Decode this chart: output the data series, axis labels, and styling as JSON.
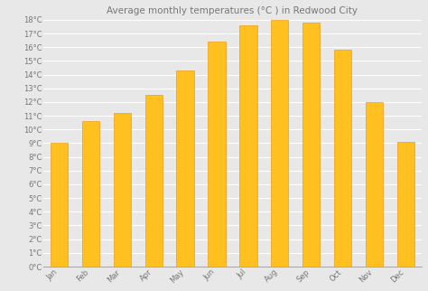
{
  "title": "Average monthly temperatures (°C ) in Redwood City",
  "months": [
    "Jan",
    "Feb",
    "Mar",
    "Apr",
    "May",
    "Jun",
    "Jul",
    "Aug",
    "Sep",
    "Oct",
    "Nov",
    "Dec"
  ],
  "values": [
    9.0,
    10.6,
    11.2,
    12.5,
    14.3,
    16.4,
    17.6,
    18.0,
    17.8,
    15.8,
    12.0,
    9.1
  ],
  "bar_color_top": "#FFC020",
  "bar_color_bottom": "#FFA000",
  "bar_edge_color": "#E89000",
  "background_color": "#e8e8e8",
  "plot_bg_color": "#e8e8e8",
  "ylim": [
    0,
    18
  ],
  "title_fontsize": 7.5,
  "tick_fontsize": 6,
  "grid_color": "#ffffff",
  "axis_color": "#aaaaaa",
  "text_color": "#777777"
}
